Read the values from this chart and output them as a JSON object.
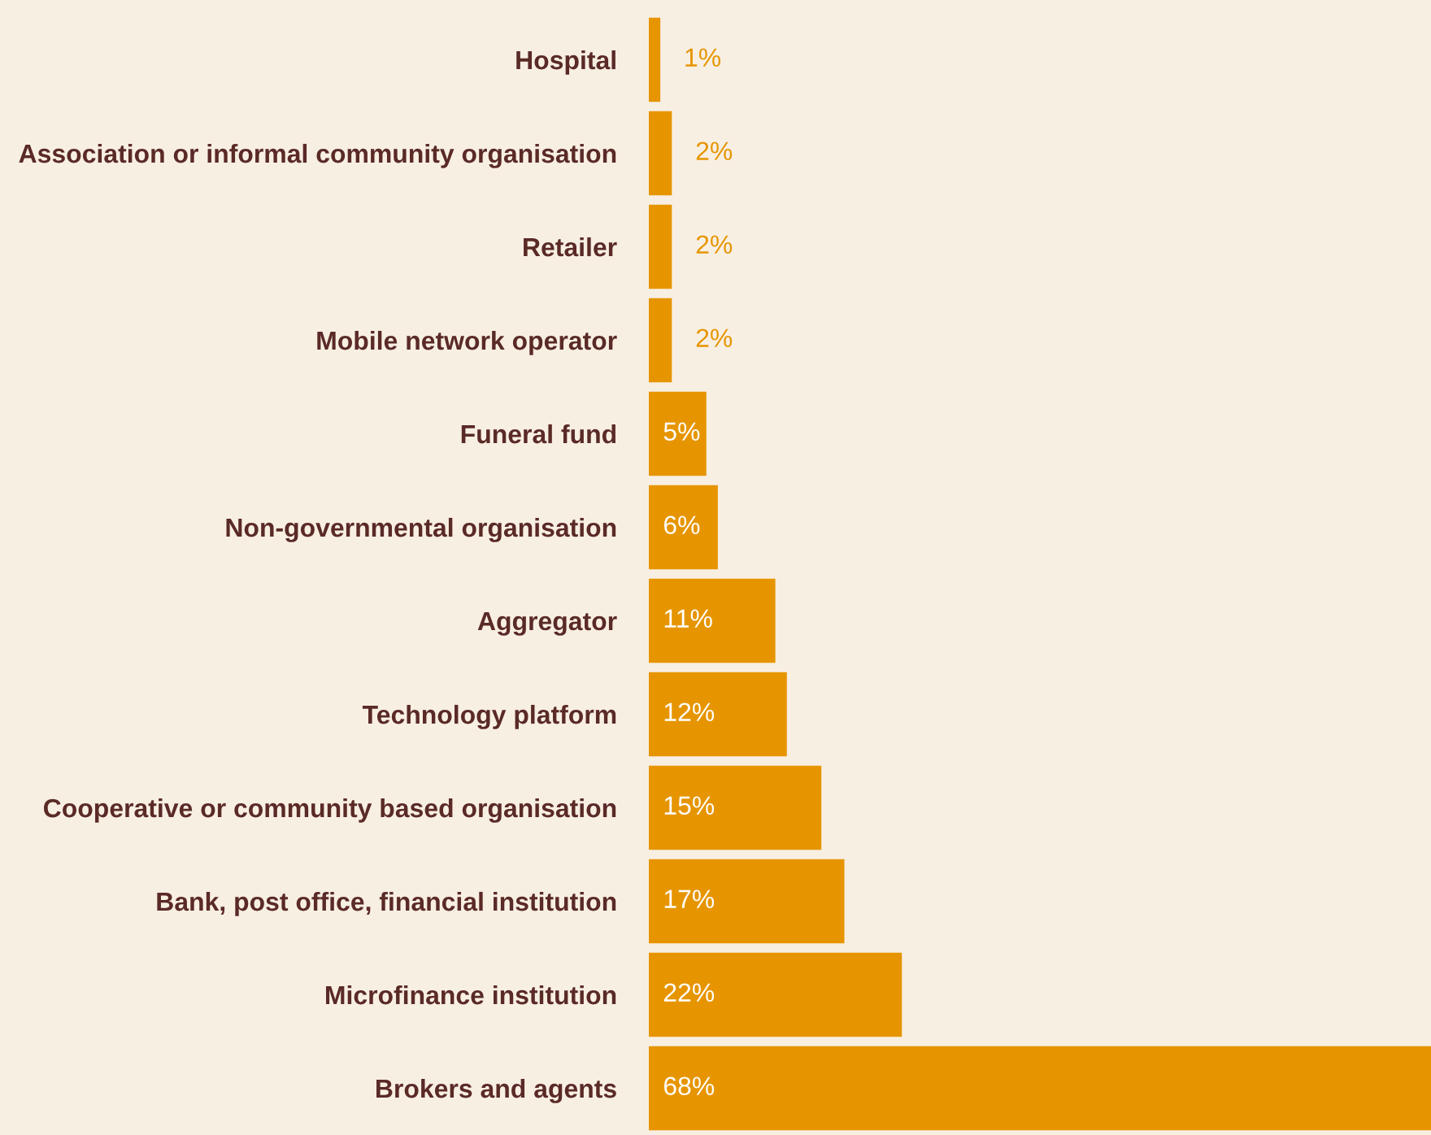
{
  "chart_data": {
    "type": "bar",
    "orientation": "horizontal",
    "categories": [
      "Hospital",
      "Association or informal community organisation",
      "Retailer",
      "Mobile network operator",
      "Funeral fund",
      "Non-governmental organisation",
      "Aggregator",
      "Technology platform",
      "Cooperative or community based organisation",
      "Bank, post office, financial institution",
      "Microfinance institution",
      "Brokers and agents"
    ],
    "values": [
      1,
      2,
      2,
      2,
      5,
      6,
      11,
      12,
      15,
      17,
      22,
      68
    ],
    "value_labels": [
      "1%",
      "2%",
      "2%",
      "2%",
      "5%",
      "6%",
      "11%",
      "12%",
      "15%",
      "17%",
      "22%",
      "68%"
    ],
    "color": "#e69500",
    "grid": false
  }
}
